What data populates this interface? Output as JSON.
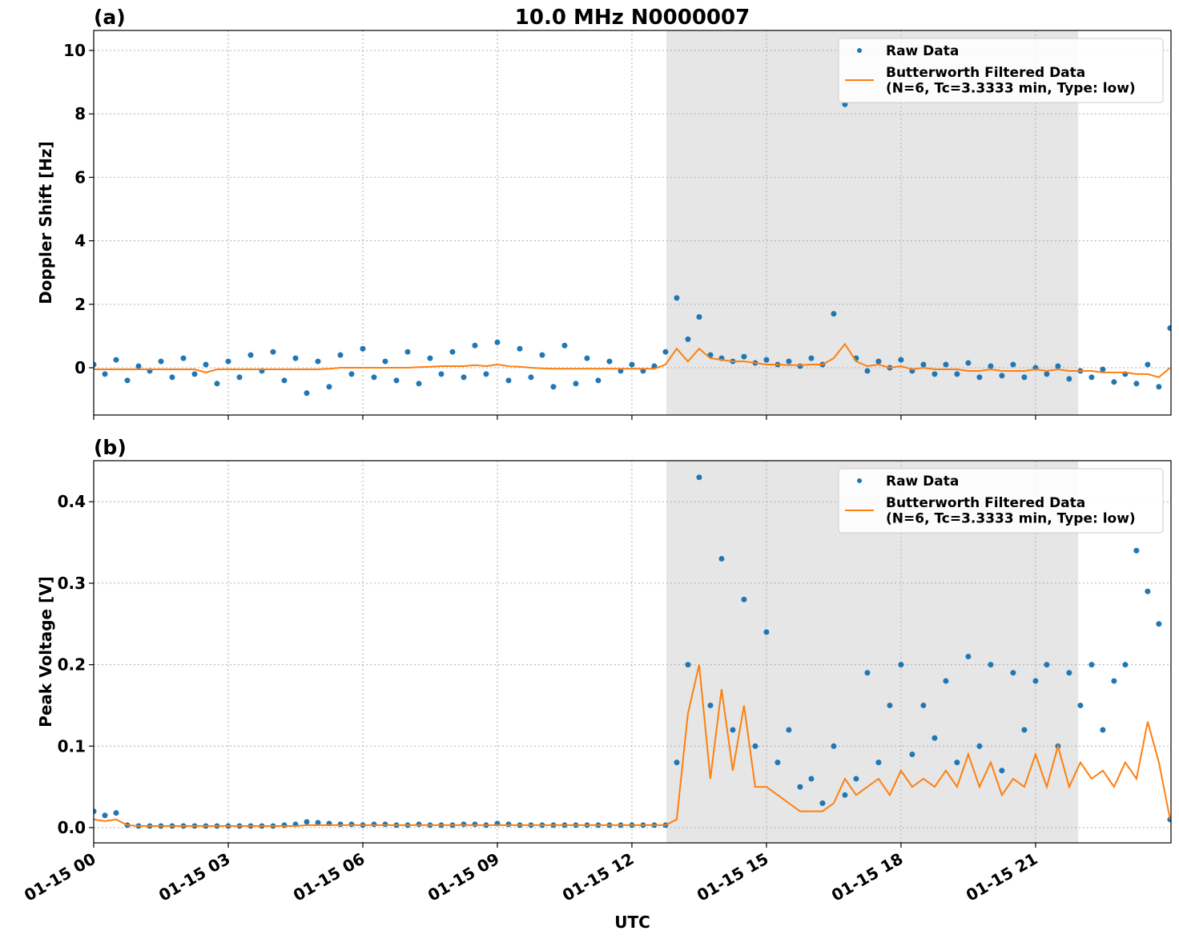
{
  "chart_data": [
    {
      "type": "line",
      "panel_label": "(a)",
      "title": "10.0 MHz N0000007",
      "ylabel": "Doppler Shift [Hz]",
      "xlim": [
        0,
        24.02
      ],
      "xticks": [
        0,
        3,
        6,
        9,
        12,
        15,
        18,
        21
      ],
      "ylim": [
        -1.49,
        10.63
      ],
      "yticks": [
        0,
        2,
        4,
        6,
        8,
        10
      ],
      "grid": true,
      "legend": "upper right",
      "span": [
        12.77,
        21.95
      ],
      "span_color": "#e6e6e6",
      "x": [
        0,
        0.25,
        0.5,
        0.75,
        1,
        1.25,
        1.5,
        1.75,
        2,
        2.25,
        2.5,
        2.75,
        3,
        3.25,
        3.5,
        3.75,
        4,
        4.25,
        4.5,
        4.75,
        5,
        5.25,
        5.5,
        5.75,
        6,
        6.25,
        6.5,
        6.75,
        7,
        7.25,
        7.5,
        7.75,
        8,
        8.25,
        8.5,
        8.75,
        9,
        9.25,
        9.5,
        9.75,
        10,
        10.25,
        10.5,
        10.75,
        11,
        11.25,
        11.5,
        11.75,
        12,
        12.25,
        12.5,
        12.75,
        13,
        13.25,
        13.5,
        13.75,
        14,
        14.25,
        14.5,
        14.75,
        15,
        15.25,
        15.5,
        15.75,
        16,
        16.25,
        16.5,
        16.75,
        17,
        17.25,
        17.5,
        17.75,
        18,
        18.25,
        18.5,
        18.75,
        19,
        19.25,
        19.5,
        19.75,
        20,
        20.25,
        20.5,
        20.75,
        21,
        21.25,
        21.5,
        21.75,
        22,
        22.25,
        22.5,
        22.75,
        23,
        23.25,
        23.5,
        23.75,
        24
      ],
      "series": [
        {
          "name": "Raw Data",
          "type": "scatter",
          "color": "#1f77b4",
          "values": [
            0.1,
            -0.2,
            0.25,
            -0.4,
            0.05,
            -0.1,
            0.2,
            -0.3,
            0.3,
            -0.2,
            0.1,
            -0.5,
            0.2,
            -0.3,
            0.4,
            -0.1,
            0.5,
            -0.4,
            0.3,
            -0.8,
            0.2,
            -0.6,
            0.4,
            -0.2,
            0.6,
            -0.3,
            0.2,
            -0.4,
            0.5,
            -0.5,
            0.3,
            -0.2,
            0.5,
            -0.3,
            0.7,
            -0.2,
            0.8,
            -0.4,
            0.6,
            -0.3,
            0.4,
            -0.6,
            0.7,
            -0.5,
            0.3,
            -0.4,
            0.2,
            -0.1,
            0.1,
            -0.1,
            0.05,
            0.5,
            2.2,
            0.9,
            1.6,
            0.4,
            0.3,
            0.2,
            0.35,
            0.15,
            0.25,
            0.1,
            0.2,
            0.05,
            0.3,
            0.1,
            1.7,
            8.3,
            0.3,
            -0.1,
            0.2,
            0.0,
            0.25,
            -0.1,
            0.1,
            -0.2,
            0.1,
            -0.2,
            0.15,
            -0.3,
            0.05,
            -0.25,
            0.1,
            -0.3,
            0.0,
            -0.2,
            0.05,
            -0.35,
            -0.1,
            -0.3,
            -0.05,
            -0.45,
            -0.2,
            -0.5,
            0.1,
            -0.6,
            1.25
          ]
        },
        {
          "name": "Butterworth Filtered Data\n(N=6, Tc=3.3333 min, Type: low)",
          "type": "line",
          "color": "#ff7f0e",
          "values": [
            -0.05,
            -0.05,
            -0.05,
            -0.05,
            -0.05,
            -0.05,
            -0.05,
            -0.05,
            -0.05,
            -0.05,
            -0.15,
            -0.05,
            -0.05,
            -0.05,
            -0.05,
            -0.05,
            -0.05,
            -0.05,
            -0.05,
            -0.05,
            -0.05,
            -0.03,
            0.0,
            0.0,
            0.0,
            0.0,
            0.0,
            0.0,
            0.0,
            0.02,
            0.03,
            0.05,
            0.05,
            0.05,
            0.08,
            0.05,
            0.1,
            0.05,
            0.03,
            0.0,
            -0.02,
            -0.03,
            -0.03,
            -0.03,
            -0.03,
            -0.03,
            -0.03,
            -0.03,
            -0.03,
            -0.03,
            -0.03,
            0.1,
            0.6,
            0.2,
            0.6,
            0.3,
            0.25,
            0.2,
            0.2,
            0.15,
            0.1,
            0.1,
            0.08,
            0.08,
            0.1,
            0.1,
            0.3,
            0.75,
            0.2,
            0.05,
            0.1,
            0.0,
            0.05,
            -0.05,
            0.0,
            -0.05,
            -0.05,
            -0.05,
            -0.1,
            -0.1,
            -0.05,
            -0.1,
            -0.1,
            -0.1,
            -0.05,
            -0.1,
            -0.05,
            -0.1,
            -0.1,
            -0.1,
            -0.15,
            -0.15,
            -0.15,
            -0.2,
            -0.2,
            -0.3,
            0.0
          ]
        }
      ]
    },
    {
      "type": "line",
      "panel_label": "(b)",
      "ylabel": "Peak Voltage [V]",
      "xlabel": "UTC",
      "xlim": [
        0,
        24.02
      ],
      "xticks": [
        {
          "value": 0,
          "label": "01-15 00"
        },
        {
          "value": 3,
          "label": "01-15 03"
        },
        {
          "value": 6,
          "label": "01-15 06"
        },
        {
          "value": 9,
          "label": "01-15 09"
        },
        {
          "value": 12,
          "label": "01-15 12"
        },
        {
          "value": 15,
          "label": "01-15 15"
        },
        {
          "value": 18,
          "label": "01-15 18"
        },
        {
          "value": 21,
          "label": "01-15 21"
        }
      ],
      "ylim": [
        -0.0187,
        0.4504
      ],
      "yticks": [
        {
          "value": 0,
          "label": "0.0"
        },
        0.1,
        0.2,
        0.3,
        0.4
      ],
      "grid": true,
      "legend": "upper right",
      "span": [
        12.77,
        21.95
      ],
      "span_color": "#e6e6e6",
      "x": [
        0,
        0.25,
        0.5,
        0.75,
        1,
        1.25,
        1.5,
        1.75,
        2,
        2.25,
        2.5,
        2.75,
        3,
        3.25,
        3.5,
        3.75,
        4,
        4.25,
        4.5,
        4.75,
        5,
        5.25,
        5.5,
        5.75,
        6,
        6.25,
        6.5,
        6.75,
        7,
        7.25,
        7.5,
        7.75,
        8,
        8.25,
        8.5,
        8.75,
        9,
        9.25,
        9.5,
        9.75,
        10,
        10.25,
        10.5,
        10.75,
        11,
        11.25,
        11.5,
        11.75,
        12,
        12.25,
        12.5,
        12.75,
        13,
        13.25,
        13.5,
        13.75,
        14,
        14.25,
        14.5,
        14.75,
        15,
        15.25,
        15.5,
        15.75,
        16,
        16.25,
        16.5,
        16.75,
        17,
        17.25,
        17.5,
        17.75,
        18,
        18.25,
        18.5,
        18.75,
        19,
        19.25,
        19.5,
        19.75,
        20,
        20.25,
        20.5,
        20.75,
        21,
        21.25,
        21.5,
        21.75,
        22,
        22.25,
        22.5,
        22.75,
        23,
        23.25,
        23.5,
        23.75,
        24
      ],
      "series": [
        {
          "name": "Raw Data",
          "type": "scatter",
          "color": "#1f77b4",
          "values": [
            0.02,
            0.015,
            0.018,
            0.003,
            0.002,
            0.002,
            0.002,
            0.002,
            0.002,
            0.002,
            0.002,
            0.002,
            0.002,
            0.002,
            0.002,
            0.002,
            0.002,
            0.003,
            0.004,
            0.007,
            0.006,
            0.005,
            0.004,
            0.004,
            0.003,
            0.004,
            0.004,
            0.003,
            0.003,
            0.004,
            0.003,
            0.003,
            0.003,
            0.004,
            0.004,
            0.003,
            0.005,
            0.004,
            0.003,
            0.003,
            0.003,
            0.003,
            0.003,
            0.003,
            0.003,
            0.003,
            0.003,
            0.003,
            0.003,
            0.003,
            0.003,
            0.003,
            0.08,
            0.2,
            0.43,
            0.15,
            0.33,
            0.12,
            0.28,
            0.1,
            0.24,
            0.08,
            0.12,
            0.05,
            0.06,
            0.03,
            0.1,
            0.04,
            0.06,
            0.19,
            0.08,
            0.15,
            0.2,
            0.09,
            0.15,
            0.11,
            0.18,
            0.08,
            0.21,
            0.1,
            0.2,
            0.07,
            0.19,
            0.12,
            0.18,
            0.2,
            0.1,
            0.19,
            0.15,
            0.2,
            0.12,
            0.18,
            0.2,
            0.34,
            0.29,
            0.25,
            0.01
          ]
        },
        {
          "name": "Butterworth Filtered Data\n(N=6, Tc=3.3333 min, Type: low)",
          "type": "line",
          "color": "#ff7f0e",
          "values": [
            0.01,
            0.008,
            0.01,
            0.003,
            0.002,
            0.002,
            0.002,
            0.002,
            0.002,
            0.002,
            0.002,
            0.002,
            0.002,
            0.002,
            0.002,
            0.002,
            0.002,
            0.002,
            0.002,
            0.003,
            0.003,
            0.003,
            0.003,
            0.003,
            0.003,
            0.003,
            0.003,
            0.003,
            0.003,
            0.003,
            0.003,
            0.003,
            0.003,
            0.003,
            0.003,
            0.003,
            0.003,
            0.003,
            0.003,
            0.003,
            0.003,
            0.003,
            0.003,
            0.003,
            0.003,
            0.003,
            0.003,
            0.003,
            0.003,
            0.003,
            0.003,
            0.003,
            0.01,
            0.14,
            0.2,
            0.06,
            0.17,
            0.07,
            0.15,
            0.05,
            0.05,
            0.04,
            0.03,
            0.02,
            0.02,
            0.02,
            0.03,
            0.06,
            0.04,
            0.05,
            0.06,
            0.04,
            0.07,
            0.05,
            0.06,
            0.05,
            0.07,
            0.05,
            0.09,
            0.05,
            0.08,
            0.04,
            0.06,
            0.05,
            0.09,
            0.05,
            0.1,
            0.05,
            0.08,
            0.06,
            0.07,
            0.05,
            0.08,
            0.06,
            0.13,
            0.08,
            0.01
          ]
        }
      ]
    }
  ]
}
